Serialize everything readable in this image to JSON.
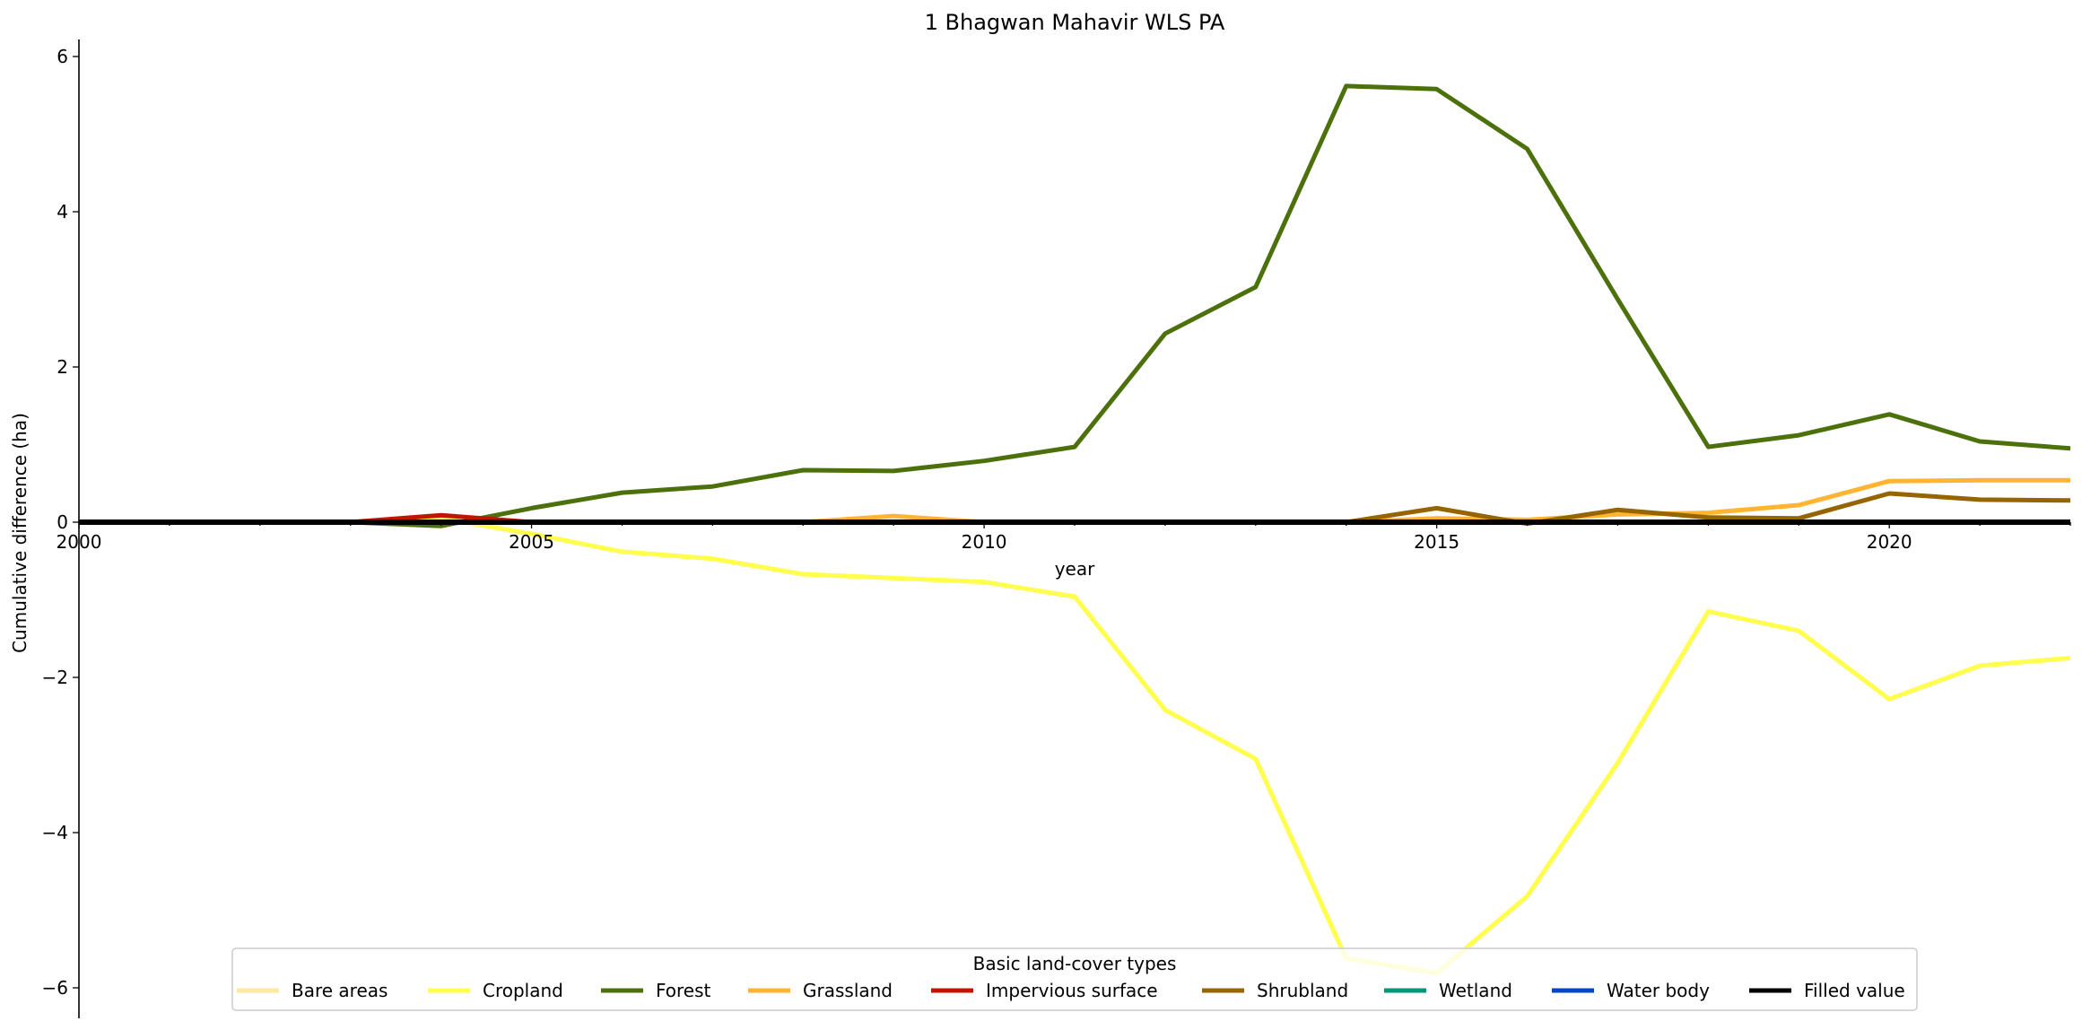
{
  "chart_data": {
    "type": "line",
    "title": "1 Bhagwan Mahavir WLS PA",
    "xlabel": "year",
    "ylabel": "Cumulative difference (ha)",
    "xlim": [
      2000,
      2022
    ],
    "ylim": [
      -6.35,
      6.2
    ],
    "xticks": [
      2000,
      2005,
      2010,
      2015,
      2020
    ],
    "yticks": [
      -6,
      -4,
      -2,
      0,
      2,
      4,
      6
    ],
    "ytick_labels": [
      "−6",
      "−4",
      "−2",
      "0",
      "2",
      "4",
      "6"
    ],
    "grid": false,
    "legend": {
      "title": "Basic land-cover types",
      "placement": "lower-center"
    },
    "x": [
      2000,
      2001,
      2002,
      2003,
      2004,
      2005,
      2006,
      2007,
      2008,
      2009,
      2010,
      2011,
      2012,
      2013,
      2014,
      2015,
      2016,
      2017,
      2018,
      2019,
      2020,
      2021,
      2022
    ],
    "series": [
      {
        "name": "Bare areas",
        "color": "#ffe8a0",
        "values": [
          0,
          0,
          0,
          0,
          0,
          0,
          0,
          0,
          0,
          0,
          0,
          0,
          0,
          0,
          0,
          0,
          0,
          0,
          0,
          0,
          0,
          0,
          0
        ]
      },
      {
        "name": "Cropland",
        "color": "#ffff4c",
        "values": [
          0,
          0,
          0,
          0,
          0.05,
          -0.15,
          -0.38,
          -0.47,
          -0.67,
          -0.72,
          -0.77,
          -0.96,
          -2.42,
          -3.05,
          -5.62,
          -5.81,
          -4.82,
          -3.1,
          -1.15,
          -1.4,
          -2.28,
          -1.85,
          -1.75
        ]
      },
      {
        "name": "Forest",
        "color": "#4c700b",
        "values": [
          0,
          0,
          0,
          0,
          -0.05,
          0.18,
          0.38,
          0.46,
          0.67,
          0.66,
          0.79,
          0.97,
          2.43,
          3.03,
          5.62,
          5.58,
          4.81,
          2.87,
          0.97,
          1.12,
          1.39,
          1.04,
          0.95
        ]
      },
      {
        "name": "Grassland",
        "color": "#ffb432",
        "values": [
          0,
          0,
          0,
          0,
          0,
          0,
          0,
          0,
          0,
          0.08,
          0,
          0,
          0,
          0,
          0,
          0.05,
          0.03,
          0.1,
          0.12,
          0.22,
          0.53,
          0.54,
          0.54
        ]
      },
      {
        "name": "Impervious surface",
        "color": "#c31400",
        "values": [
          0,
          0,
          0,
          0,
          0.09,
          0,
          0,
          0,
          0,
          0,
          0,
          0,
          0,
          0,
          0,
          0,
          0,
          0,
          0,
          0,
          0,
          0,
          0
        ]
      },
      {
        "name": "Shrubland",
        "color": "#966400",
        "values": [
          0,
          0,
          0,
          0,
          0,
          0,
          0,
          0,
          0,
          0,
          0,
          0,
          0,
          0,
          0,
          0.18,
          -0.02,
          0.16,
          0.06,
          0.05,
          0.37,
          0.29,
          0.28
        ]
      },
      {
        "name": "Wetland",
        "color": "#009678",
        "values": [
          0,
          0,
          0,
          0,
          0,
          0,
          0,
          0,
          0,
          0,
          0,
          0,
          0,
          0,
          0,
          0,
          0,
          0,
          0,
          0,
          0,
          0,
          0
        ]
      },
      {
        "name": "Water body",
        "color": "#0046c8",
        "values": [
          0,
          0,
          0,
          0,
          0,
          0,
          0,
          0,
          0,
          0,
          0,
          0,
          0,
          0,
          0,
          0,
          0,
          0,
          0,
          0,
          0,
          0,
          0
        ]
      },
      {
        "name": "Filled value",
        "color": "#000000",
        "values": [
          0,
          0,
          0,
          0,
          0,
          0,
          0,
          0,
          0,
          0,
          0,
          0,
          0,
          0,
          0,
          0,
          0,
          0,
          0,
          0,
          0,
          0,
          0
        ]
      }
    ]
  }
}
